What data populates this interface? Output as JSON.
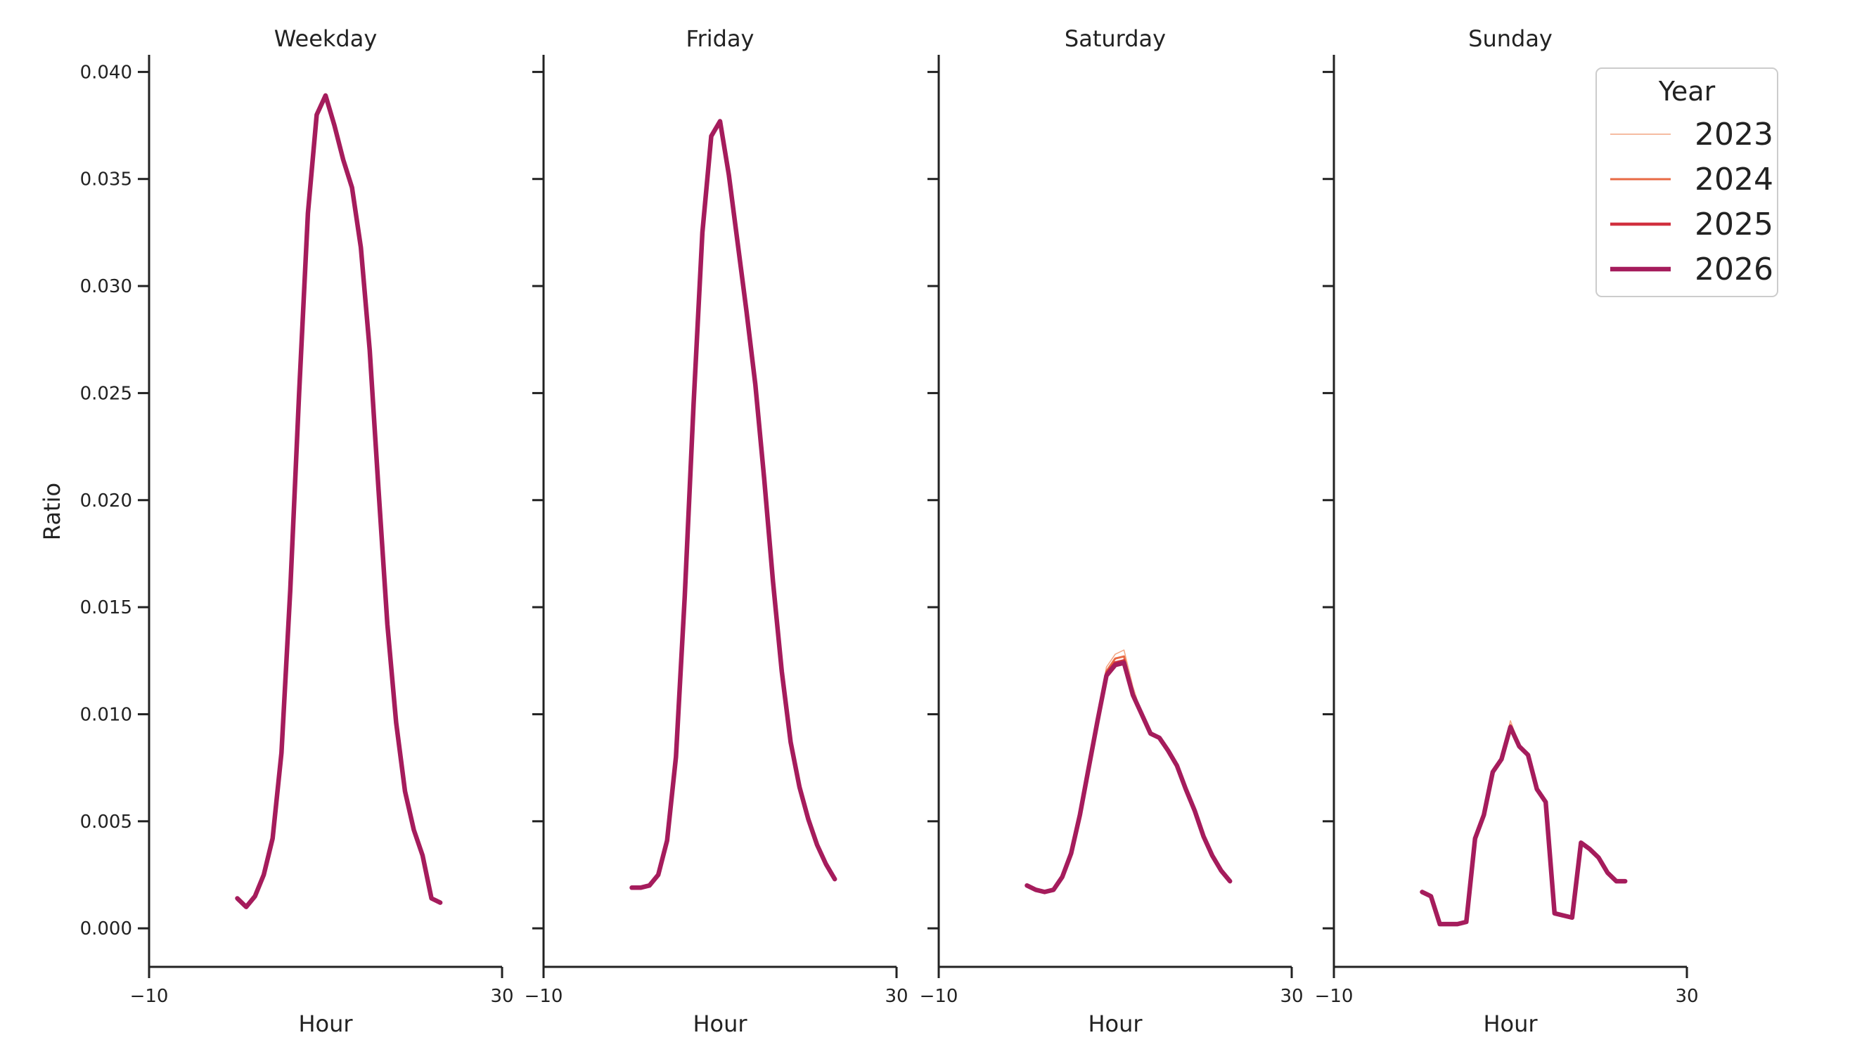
{
  "chart_data": {
    "type": "line",
    "ylabel": "Ratio",
    "xlabel": "Hour",
    "xlim": [
      -10,
      30
    ],
    "xticks": [
      -10,
      30
    ],
    "xtick_labels": [
      "−10",
      "30"
    ],
    "ylim": [
      -0.0018,
      0.0408
    ],
    "yticks": [
      0.0,
      0.005,
      0.01,
      0.015,
      0.02,
      0.025,
      0.03,
      0.035,
      0.04
    ],
    "ytick_labels": [
      "0.000",
      "0.005",
      "0.010",
      "0.015",
      "0.020",
      "0.025",
      "0.030",
      "0.035",
      "0.040"
    ],
    "grid": false,
    "legend": {
      "title": "Year",
      "placement": "upper right",
      "entries": [
        {
          "label": "2023",
          "color": "#f4a582",
          "width": 1.5
        },
        {
          "label": "2024",
          "color": "#e86a44",
          "width": 3
        },
        {
          "label": "2025",
          "color": "#d1303e",
          "width": 4.5
        },
        {
          "label": "2026",
          "color": "#a51c5c",
          "width": 6.5
        }
      ]
    },
    "panels": [
      {
        "title": "Weekday",
        "series": [
          {
            "name": "2023",
            "x": [
              0,
              1,
              2,
              3,
              4,
              5,
              6,
              7,
              8,
              9,
              10,
              11,
              12,
              13,
              14,
              15,
              16,
              17,
              18,
              19,
              20,
              21,
              22,
              23
            ],
            "y": [
              0.0014,
              0.001,
              0.0015,
              0.0025,
              0.0042,
              0.0082,
              0.0158,
              0.025,
              0.0334,
              0.038,
              0.0389,
              0.0375,
              0.0359,
              0.0346,
              0.0318,
              0.027,
              0.0205,
              0.0142,
              0.0096,
              0.0064,
              0.0046,
              0.0034,
              0.0014,
              0.0012
            ]
          },
          {
            "name": "2024",
            "x": [
              0,
              1,
              2,
              3,
              4,
              5,
              6,
              7,
              8,
              9,
              10,
              11,
              12,
              13,
              14,
              15,
              16,
              17,
              18,
              19,
              20,
              21,
              22,
              23
            ],
            "y": [
              0.0014,
              0.001,
              0.0015,
              0.0025,
              0.0042,
              0.0082,
              0.0158,
              0.025,
              0.0334,
              0.038,
              0.0389,
              0.0375,
              0.0359,
              0.0346,
              0.0318,
              0.027,
              0.0205,
              0.0142,
              0.0096,
              0.0064,
              0.0046,
              0.0034,
              0.0014,
              0.0012
            ]
          },
          {
            "name": "2025",
            "x": [
              0,
              1,
              2,
              3,
              4,
              5,
              6,
              7,
              8,
              9,
              10,
              11,
              12,
              13,
              14,
              15,
              16,
              17,
              18,
              19,
              20,
              21,
              22,
              23
            ],
            "y": [
              0.0014,
              0.001,
              0.0015,
              0.0025,
              0.0042,
              0.0082,
              0.0158,
              0.025,
              0.0334,
              0.038,
              0.0389,
              0.0375,
              0.0359,
              0.0346,
              0.0318,
              0.027,
              0.0205,
              0.0142,
              0.0096,
              0.0064,
              0.0046,
              0.0034,
              0.0014,
              0.0012
            ]
          },
          {
            "name": "2026",
            "x": [
              0,
              1,
              2,
              3,
              4,
              5,
              6,
              7,
              8,
              9,
              10,
              11,
              12,
              13,
              14,
              15,
              16,
              17,
              18,
              19,
              20,
              21,
              22,
              23
            ],
            "y": [
              0.0014,
              0.001,
              0.0015,
              0.0025,
              0.0042,
              0.0082,
              0.0158,
              0.025,
              0.0334,
              0.038,
              0.0389,
              0.0375,
              0.0359,
              0.0346,
              0.0318,
              0.027,
              0.0205,
              0.0142,
              0.0096,
              0.0064,
              0.0046,
              0.0034,
              0.0014,
              0.0012
            ]
          }
        ]
      },
      {
        "title": "Friday",
        "series": [
          {
            "name": "2023",
            "x": [
              0,
              1,
              2,
              3,
              4,
              5,
              6,
              7,
              8,
              9,
              10,
              11,
              12,
              13,
              14,
              15,
              16,
              17,
              18,
              19,
              20,
              21,
              22,
              23
            ],
            "y": [
              0.0019,
              0.0019,
              0.002,
              0.0025,
              0.0041,
              0.008,
              0.0155,
              0.0245,
              0.0325,
              0.037,
              0.0377,
              0.0352,
              0.032,
              0.0288,
              0.0254,
              0.021,
              0.0162,
              0.012,
              0.0087,
              0.0066,
              0.0051,
              0.0039,
              0.003,
              0.0023
            ]
          },
          {
            "name": "2024",
            "x": [
              0,
              1,
              2,
              3,
              4,
              5,
              6,
              7,
              8,
              9,
              10,
              11,
              12,
              13,
              14,
              15,
              16,
              17,
              18,
              19,
              20,
              21,
              22,
              23
            ],
            "y": [
              0.0019,
              0.0019,
              0.002,
              0.0025,
              0.0041,
              0.008,
              0.0155,
              0.0245,
              0.0325,
              0.037,
              0.0377,
              0.0352,
              0.032,
              0.0288,
              0.0254,
              0.021,
              0.0162,
              0.012,
              0.0087,
              0.0066,
              0.0051,
              0.0039,
              0.003,
              0.0023
            ]
          },
          {
            "name": "2025",
            "x": [
              0,
              1,
              2,
              3,
              4,
              5,
              6,
              7,
              8,
              9,
              10,
              11,
              12,
              13,
              14,
              15,
              16,
              17,
              18,
              19,
              20,
              21,
              22,
              23
            ],
            "y": [
              0.0019,
              0.0019,
              0.002,
              0.0025,
              0.0041,
              0.008,
              0.0155,
              0.0245,
              0.0325,
              0.037,
              0.0377,
              0.0352,
              0.032,
              0.0288,
              0.0254,
              0.021,
              0.0162,
              0.012,
              0.0087,
              0.0066,
              0.0051,
              0.0039,
              0.003,
              0.0023
            ]
          },
          {
            "name": "2026",
            "x": [
              0,
              1,
              2,
              3,
              4,
              5,
              6,
              7,
              8,
              9,
              10,
              11,
              12,
              13,
              14,
              15,
              16,
              17,
              18,
              19,
              20,
              21,
              22,
              23
            ],
            "y": [
              0.0019,
              0.0019,
              0.002,
              0.0025,
              0.0041,
              0.008,
              0.0155,
              0.0245,
              0.0325,
              0.037,
              0.0377,
              0.0352,
              0.032,
              0.0288,
              0.0254,
              0.021,
              0.0162,
              0.012,
              0.0087,
              0.0066,
              0.0051,
              0.0039,
              0.003,
              0.0023
            ]
          }
        ]
      },
      {
        "title": "Saturday",
        "series": [
          {
            "name": "2023",
            "x": [
              0,
              1,
              2,
              3,
              4,
              5,
              6,
              7,
              8,
              9,
              10,
              11,
              12,
              13,
              14,
              15,
              16,
              17,
              18,
              19,
              20,
              21,
              22,
              23
            ],
            "y": [
              0.002,
              0.0018,
              0.0017,
              0.0018,
              0.0024,
              0.0035,
              0.0053,
              0.0075,
              0.0097,
              0.0122,
              0.0128,
              0.013,
              0.0113,
              0.01,
              0.0091,
              0.0089,
              0.0083,
              0.0076,
              0.0065,
              0.0055,
              0.0043,
              0.0034,
              0.0027,
              0.0022
            ]
          },
          {
            "name": "2024",
            "x": [
              0,
              1,
              2,
              3,
              4,
              5,
              6,
              7,
              8,
              9,
              10,
              11,
              12,
              13,
              14,
              15,
              16,
              17,
              18,
              19,
              20,
              21,
              22,
              23
            ],
            "y": [
              0.002,
              0.0018,
              0.0017,
              0.0018,
              0.0024,
              0.0035,
              0.0053,
              0.0075,
              0.0097,
              0.012,
              0.0126,
              0.0127,
              0.011,
              0.01,
              0.0091,
              0.0089,
              0.0083,
              0.0076,
              0.0065,
              0.0055,
              0.0043,
              0.0034,
              0.0027,
              0.0022
            ]
          },
          {
            "name": "2025",
            "x": [
              0,
              1,
              2,
              3,
              4,
              5,
              6,
              7,
              8,
              9,
              10,
              11,
              12,
              13,
              14,
              15,
              16,
              17,
              18,
              19,
              20,
              21,
              22,
              23
            ],
            "y": [
              0.002,
              0.0018,
              0.0017,
              0.0018,
              0.0024,
              0.0035,
              0.0053,
              0.0075,
              0.0097,
              0.0119,
              0.0124,
              0.0125,
              0.0109,
              0.01,
              0.0091,
              0.0089,
              0.0083,
              0.0076,
              0.0065,
              0.0055,
              0.0043,
              0.0034,
              0.0027,
              0.0022
            ]
          },
          {
            "name": "2026",
            "x": [
              0,
              1,
              2,
              3,
              4,
              5,
              6,
              7,
              8,
              9,
              10,
              11,
              12,
              13,
              14,
              15,
              16,
              17,
              18,
              19,
              20,
              21,
              22,
              23
            ],
            "y": [
              0.002,
              0.0018,
              0.0017,
              0.0018,
              0.0024,
              0.0035,
              0.0053,
              0.0075,
              0.0097,
              0.0118,
              0.0123,
              0.0124,
              0.0109,
              0.01,
              0.0091,
              0.0089,
              0.0083,
              0.0076,
              0.0065,
              0.0055,
              0.0043,
              0.0034,
              0.0027,
              0.0022
            ]
          }
        ]
      },
      {
        "title": "Sunday",
        "series": [
          {
            "name": "2023",
            "x": [
              0,
              1,
              2,
              3,
              4,
              5,
              6,
              7,
              8,
              9,
              10,
              11,
              12,
              13,
              14,
              15,
              16,
              17,
              18,
              19,
              20,
              21,
              22,
              23
            ],
            "y": [
              0.0017,
              0.0015,
              0.0002,
              0.0002,
              0.0002,
              0.0003,
              0.0042,
              0.0053,
              0.0073,
              0.0079,
              0.0097,
              0.0086,
              0.0081,
              0.0065,
              0.0059,
              0.0007,
              0.0006,
              0.0005,
              0.004,
              0.0037,
              0.0033,
              0.0026,
              0.0022,
              0.0022
            ]
          },
          {
            "name": "2024",
            "x": [
              0,
              1,
              2,
              3,
              4,
              5,
              6,
              7,
              8,
              9,
              10,
              11,
              12,
              13,
              14,
              15,
              16,
              17,
              18,
              19,
              20,
              21,
              22,
              23
            ],
            "y": [
              0.0017,
              0.0015,
              0.0002,
              0.0002,
              0.0002,
              0.0003,
              0.0042,
              0.0053,
              0.0073,
              0.0079,
              0.0095,
              0.0085,
              0.0081,
              0.0065,
              0.0059,
              0.0007,
              0.0006,
              0.0005,
              0.004,
              0.0037,
              0.0033,
              0.0026,
              0.0022,
              0.0022
            ]
          },
          {
            "name": "2025",
            "x": [
              0,
              1,
              2,
              3,
              4,
              5,
              6,
              7,
              8,
              9,
              10,
              11,
              12,
              13,
              14,
              15,
              16,
              17,
              18,
              19,
              20,
              21,
              22,
              23
            ],
            "y": [
              0.0017,
              0.0015,
              0.0002,
              0.0002,
              0.0002,
              0.0003,
              0.0042,
              0.0053,
              0.0073,
              0.0079,
              0.0094,
              0.0085,
              0.0081,
              0.0065,
              0.0059,
              0.0007,
              0.0006,
              0.0005,
              0.004,
              0.0037,
              0.0033,
              0.0026,
              0.0022,
              0.0022
            ]
          },
          {
            "name": "2026",
            "x": [
              0,
              1,
              2,
              3,
              4,
              5,
              6,
              7,
              8,
              9,
              10,
              11,
              12,
              13,
              14,
              15,
              16,
              17,
              18,
              19,
              20,
              21,
              22,
              23
            ],
            "y": [
              0.0017,
              0.0015,
              0.0002,
              0.0002,
              0.0002,
              0.0003,
              0.0042,
              0.0053,
              0.0073,
              0.0079,
              0.0094,
              0.0085,
              0.0081,
              0.0065,
              0.0059,
              0.0007,
              0.0006,
              0.0005,
              0.004,
              0.0037,
              0.0033,
              0.0026,
              0.0022,
              0.0022
            ]
          }
        ]
      }
    ]
  }
}
